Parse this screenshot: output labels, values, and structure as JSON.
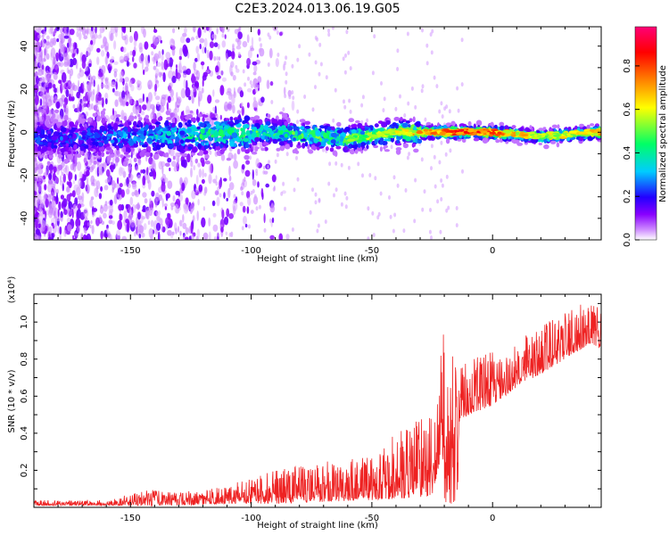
{
  "title": "C2E3.2024.013.06.19.G05",
  "colors": {
    "snr_line": "#ee2222",
    "colormap": [
      "#ffffff",
      "#cc88ff",
      "#8800ff",
      "#3300ff",
      "#00ccff",
      "#00ff66",
      "#ffff00",
      "#ff7700",
      "#ff0000",
      "#ff0077"
    ]
  },
  "chart_data": [
    {
      "type": "heatmap",
      "title": "",
      "xlabel": "Height of straight line (km)",
      "ylabel": "Frequency (Hz)",
      "xlim": [
        -190,
        45
      ],
      "ylim": [
        -50,
        49
      ],
      "x_ticks": [
        -150,
        -100,
        -50,
        0
      ],
      "y_ticks": [
        -40,
        -20,
        0,
        20,
        40
      ],
      "colorbar": {
        "label": "Normalized spectral amplitude",
        "range": [
          0,
          0.98
        ],
        "ticks": [
          0.0,
          0.2,
          0.4,
          0.6,
          0.8
        ]
      },
      "ridge": {
        "description_points": [
          {
            "x": -190,
            "y": -3,
            "amp": 0.25
          },
          {
            "x": -150,
            "y": -2,
            "amp": 0.3
          },
          {
            "x": -120,
            "y": -1,
            "amp": 0.45
          },
          {
            "x": -90,
            "y": 0,
            "amp": 0.5
          },
          {
            "x": -60,
            "y": -3,
            "amp": 0.55
          },
          {
            "x": -40,
            "y": 0,
            "amp": 0.6
          },
          {
            "x": -15,
            "y": 0,
            "amp": 0.85
          },
          {
            "x": 0,
            "y": 0,
            "amp": 0.8
          },
          {
            "x": 20,
            "y": -2,
            "amp": 0.6
          },
          {
            "x": 45,
            "y": 0,
            "amp": 0.7
          }
        ]
      }
    },
    {
      "type": "line",
      "title": "",
      "xlabel": "Height of straight line (km)",
      "ylabel": "SNR (10 * v/v)",
      "y_scale_label": "(x10⁴)",
      "xlim": [
        -190,
        45
      ],
      "ylim": [
        0,
        1.15
      ],
      "x_ticks": [
        -150,
        -100,
        -50,
        0
      ],
      "y_ticks": [
        0.2,
        0.4,
        0.6,
        0.8,
        1.0
      ],
      "series": [
        {
          "values_envelope": {
            "x": [
              -190,
              -160,
              -142,
              -130,
              -110,
              -90,
              -70,
              -50,
              -35,
              -25,
              -21,
              -19,
              -15,
              -10,
              0,
              10,
              20,
              30,
              40,
              45
            ],
            "y_low": [
              0.01,
              0.01,
              0.01,
              0.01,
              0.02,
              0.02,
              0.03,
              0.04,
              0.05,
              0.06,
              0.3,
              0.02,
              0.45,
              0.5,
              0.55,
              0.65,
              0.72,
              0.8,
              0.88,
              0.85
            ],
            "y_high": [
              0.04,
              0.04,
              0.1,
              0.08,
              0.12,
              0.2,
              0.25,
              0.3,
              0.45,
              0.5,
              0.95,
              1.0,
              0.85,
              0.8,
              0.85,
              0.9,
              0.98,
              1.05,
              1.13,
              1.1
            ]
          }
        }
      ]
    }
  ]
}
